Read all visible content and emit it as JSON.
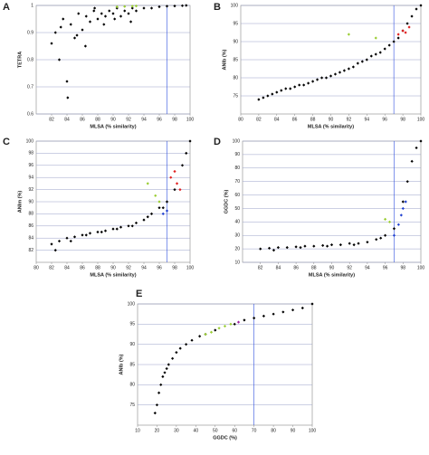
{
  "chart_data": [
    {
      "type": "scatter",
      "title": "A",
      "x_label": "MLSA (% similarity)",
      "y_label": "TETRA",
      "xlim": [
        80,
        100
      ],
      "xticks": [
        82,
        84,
        86,
        88,
        90,
        92,
        94,
        96,
        98,
        100
      ],
      "ylim": [
        0.6,
        1
      ],
      "yticks": [
        0.6,
        0.7,
        0.8,
        0.9,
        1
      ],
      "vlines": [
        97
      ],
      "grid": true,
      "series": [
        {
          "color": "#000000",
          "x": [
            82,
            82.5,
            83,
            83.5,
            84,
            84.5,
            85,
            85.5,
            86,
            86.5,
            87,
            87.5,
            88,
            88.5,
            89,
            89.5,
            90,
            90.5,
            91,
            91.5,
            92,
            92.5,
            93,
            94,
            95,
            96,
            97,
            98,
            99,
            99.5,
            83.2,
            84.1,
            85.3,
            86.4,
            87.6,
            88.8,
            90.2,
            92.3
          ],
          "values": [
            0.86,
            0.9,
            0.8,
            0.95,
            0.72,
            0.93,
            0.88,
            0.97,
            0.91,
            0.96,
            0.94,
            0.98,
            0.95,
            0.97,
            0.96,
            0.98,
            0.97,
            0.99,
            0.96,
            0.98,
            0.97,
            0.99,
            0.98,
            0.99,
            0.99,
            0.995,
            0.997,
            0.998,
            0.999,
            1,
            0.92,
            0.66,
            0.89,
            0.85,
            0.99,
            0.93,
            0.95,
            0.94
          ]
        },
        {
          "color": "#9acd32",
          "x": [
            90.5,
            91.5,
            92.5,
            93
          ],
          "values": [
            0.995,
            0.996,
            0.997,
            0.998
          ]
        }
      ]
    },
    {
      "type": "scatter",
      "title": "B",
      "x_label": "MLSA (% similarity)",
      "y_label": "ANIb (%)",
      "xlim": [
        80,
        100
      ],
      "xticks": [
        80,
        82,
        84,
        86,
        88,
        90,
        92,
        94,
        96,
        98,
        100
      ],
      "ylim": [
        70,
        100
      ],
      "yticks": [
        75,
        80,
        85,
        90,
        95,
        100
      ],
      "vlines": [
        97
      ],
      "grid": true,
      "series": [
        {
          "color": "#000000",
          "x": [
            82,
            82.5,
            83,
            83.5,
            84,
            84.5,
            85,
            85.5,
            86,
            86.5,
            87,
            87.5,
            88,
            88.5,
            89,
            89.5,
            90,
            90.5,
            91,
            91.5,
            92,
            92.5,
            93,
            93.5,
            94,
            94.5,
            95,
            95.5,
            96,
            96.5,
            97,
            97.5,
            98,
            98.5,
            99,
            99.5,
            100
          ],
          "values": [
            74,
            74.5,
            75,
            75.5,
            76,
            76.5,
            77,
            77,
            77.5,
            78,
            78,
            78.5,
            79,
            79.5,
            80,
            80,
            80.5,
            81,
            81.5,
            82,
            82.5,
            83,
            84,
            84.5,
            85,
            86,
            86.5,
            87,
            88,
            89,
            90,
            91,
            93,
            95,
            97,
            99,
            100
          ]
        },
        {
          "color": "#9acd32",
          "x": [
            92,
            95
          ],
          "values": [
            92,
            91
          ]
        },
        {
          "color": "#e02020",
          "x": [
            97.5,
            98,
            98.3,
            98.7
          ],
          "values": [
            92,
            93,
            92.5,
            94
          ]
        }
      ]
    },
    {
      "type": "scatter",
      "title": "C",
      "x_label": "MLSA (% similarity)",
      "y_label": "ANIm (%)",
      "xlim": [
        80,
        100
      ],
      "xticks": [
        80,
        82,
        84,
        86,
        88,
        90,
        92,
        94,
        96,
        98,
        100
      ],
      "ylim": [
        80,
        100
      ],
      "yticks": [
        82,
        84,
        86,
        88,
        90,
        92,
        94,
        96,
        98,
        100
      ],
      "vlines": [
        97
      ],
      "grid": true,
      "series": [
        {
          "color": "#000000",
          "x": [
            82,
            83,
            84,
            85,
            86,
            87,
            88,
            89,
            90,
            91,
            92,
            93,
            94,
            95,
            96,
            97,
            98,
            99,
            99.5,
            100,
            82.5,
            84.5,
            86.5,
            88.5,
            90.5,
            92.5,
            94.5,
            96.5
          ],
          "values": [
            83,
            83.5,
            84,
            84.2,
            84.5,
            84.8,
            85,
            85.2,
            85.5,
            85.8,
            86,
            86.5,
            87,
            88,
            89,
            90,
            92,
            96,
            98,
            100,
            82,
            83.5,
            84.5,
            85,
            85.5,
            86,
            87.5,
            89
          ]
        },
        {
          "color": "#9acd32",
          "x": [
            94.5,
            95.5,
            96
          ],
          "values": [
            93,
            91,
            90
          ]
        },
        {
          "color": "#e02020",
          "x": [
            97.5,
            98,
            98.3,
            98.7
          ],
          "values": [
            94,
            95,
            93,
            92
          ]
        },
        {
          "color": "#2040d0",
          "x": [
            96.5,
            97
          ],
          "values": [
            88,
            88.5
          ]
        }
      ]
    },
    {
      "type": "scatter",
      "title": "D",
      "x_label": "MLSA (% similarity)",
      "y_label": "GGDC (%)",
      "xlim": [
        80,
        100
      ],
      "xticks": [
        82,
        84,
        86,
        88,
        90,
        92,
        94,
        96,
        98,
        100
      ],
      "ylim": [
        10,
        100
      ],
      "yticks": [
        10,
        20,
        30,
        40,
        50,
        60,
        70,
        80,
        90,
        100
      ],
      "vlines": [
        97
      ],
      "grid": true,
      "series": [
        {
          "color": "#000000",
          "x": [
            82,
            83,
            84,
            85,
            86,
            87,
            88,
            89,
            90,
            91,
            92,
            93,
            94,
            95,
            96,
            97,
            98,
            98.5,
            99,
            99.5,
            100,
            83.5,
            86.5,
            89.5,
            92.5,
            95.5
          ],
          "values": [
            20,
            20.5,
            21,
            21,
            21.5,
            22,
            22,
            22.5,
            23,
            23,
            24,
            24,
            25,
            27,
            30,
            35,
            55,
            70,
            85,
            95,
            100,
            19,
            21,
            22,
            23,
            28
          ]
        },
        {
          "color": "#9acd32",
          "x": [
            96,
            96.5
          ],
          "values": [
            42,
            40
          ]
        },
        {
          "color": "#2040d0",
          "x": [
            97,
            97.5,
            97.8,
            98,
            98.3
          ],
          "values": [
            30,
            38,
            45,
            50,
            55
          ]
        }
      ]
    },
    {
      "type": "scatter",
      "title": "E",
      "x_label": "GGDC (%)",
      "y_label": "ANIb (%)",
      "xlim": [
        10,
        100
      ],
      "xticks": [
        10,
        20,
        30,
        40,
        50,
        60,
        70,
        80,
        90,
        100
      ],
      "ylim": [
        70,
        100
      ],
      "yticks": [
        75,
        80,
        85,
        90,
        95,
        100
      ],
      "vlines": [
        70
      ],
      "grid": true,
      "series": [
        {
          "color": "#000000",
          "x": [
            19,
            20,
            21,
            22,
            23,
            24,
            25,
            26,
            28,
            30,
            32,
            35,
            38,
            42,
            45,
            50,
            60,
            65,
            70,
            75,
            80,
            85,
            90,
            95,
            100
          ],
          "values": [
            73,
            75,
            78,
            80,
            82,
            83,
            84,
            85,
            86.5,
            88,
            89,
            90,
            91,
            92,
            92.5,
            93.5,
            95,
            96,
            96.5,
            97,
            97.5,
            98,
            98.5,
            99,
            100
          ]
        },
        {
          "color": "#9acd32",
          "x": [
            45,
            48,
            52,
            55,
            58
          ],
          "values": [
            92.5,
            93,
            94,
            94.5,
            95
          ]
        },
        {
          "color": "#a020a0",
          "x": [
            62
          ],
          "values": [
            95.5
          ]
        }
      ]
    }
  ]
}
